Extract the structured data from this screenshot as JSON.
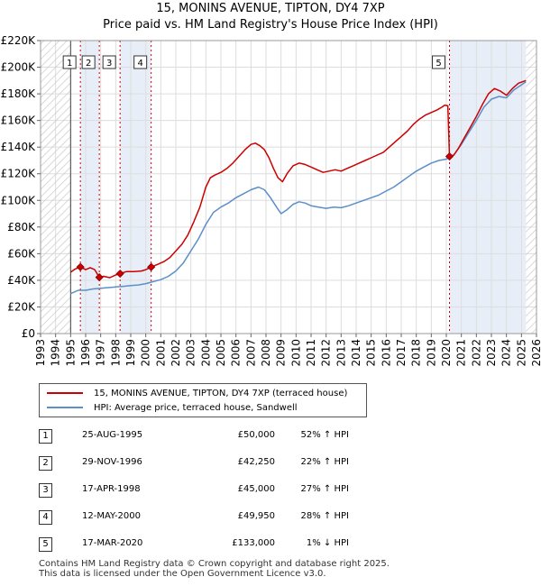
{
  "title_line1": "15, MONINS AVENUE, TIPTON, DY4 7XP",
  "title_line2": "Price paid vs. HM Land Registry's House Price Index (HPI)",
  "chart_data": {
    "type": "line",
    "x_label": "",
    "y_label": "",
    "xlim": [
      1993,
      2026
    ],
    "ylim": [
      0,
      220000
    ],
    "y_ticks": [
      {
        "value": 0,
        "label": "£0"
      },
      {
        "value": 20000,
        "label": "£20K"
      },
      {
        "value": 40000,
        "label": "£40K"
      },
      {
        "value": 60000,
        "label": "£60K"
      },
      {
        "value": 80000,
        "label": "£80K"
      },
      {
        "value": 100000,
        "label": "£100K"
      },
      {
        "value": 120000,
        "label": "£120K"
      },
      {
        "value": 140000,
        "label": "£140K"
      },
      {
        "value": 160000,
        "label": "£160K"
      },
      {
        "value": 180000,
        "label": "£180K"
      },
      {
        "value": 200000,
        "label": "£200K"
      },
      {
        "value": 220000,
        "label": "£220K"
      }
    ],
    "x_ticks": [
      "1993",
      "1994",
      "1995",
      "1996",
      "1997",
      "1998",
      "1999",
      "2000",
      "2001",
      "2002",
      "2003",
      "2004",
      "2005",
      "2006",
      "2007",
      "2008",
      "2009",
      "2010",
      "2011",
      "2012",
      "2013",
      "2014",
      "2015",
      "2016",
      "2017",
      "2018",
      "2019",
      "2020",
      "2021",
      "2022",
      "2023",
      "2024",
      "2025",
      "2026"
    ],
    "hatch_regions": [
      [
        1993,
        1995.0
      ],
      [
        2025.3,
        2026
      ]
    ],
    "shaded_bands": [
      [
        1995.65,
        1996.91
      ],
      [
        1998.29,
        2000.36
      ],
      [
        2020.21,
        2025.3
      ]
    ],
    "series": [
      {
        "name": "15, MONINS AVENUE, TIPTON, DY4 7XP (terraced house)",
        "color": "#cc0000",
        "points": [
          [
            1995.0,
            46000
          ],
          [
            1995.3,
            48500
          ],
          [
            1995.65,
            50000
          ],
          [
            1996.0,
            48000
          ],
          [
            1996.3,
            49500
          ],
          [
            1996.6,
            48000
          ],
          [
            1996.91,
            42250
          ],
          [
            1997.2,
            43000
          ],
          [
            1997.6,
            42000
          ],
          [
            1998.0,
            44000
          ],
          [
            1998.29,
            45000
          ],
          [
            1998.7,
            46500
          ],
          [
            1999.2,
            46500
          ],
          [
            1999.7,
            47000
          ],
          [
            2000.0,
            48000
          ],
          [
            2000.36,
            49950
          ],
          [
            2000.8,
            52000
          ],
          [
            2001.2,
            54000
          ],
          [
            2001.6,
            57000
          ],
          [
            2002.0,
            62000
          ],
          [
            2002.4,
            67000
          ],
          [
            2002.8,
            74000
          ],
          [
            2003.2,
            84000
          ],
          [
            2003.6,
            95000
          ],
          [
            2004.0,
            110000
          ],
          [
            2004.3,
            117000
          ],
          [
            2004.6,
            119000
          ],
          [
            2005.0,
            121000
          ],
          [
            2005.4,
            124000
          ],
          [
            2005.8,
            128000
          ],
          [
            2006.2,
            133000
          ],
          [
            2006.6,
            138000
          ],
          [
            2007.0,
            142000
          ],
          [
            2007.3,
            143000
          ],
          [
            2007.6,
            141000
          ],
          [
            2007.9,
            138000
          ],
          [
            2008.2,
            132000
          ],
          [
            2008.5,
            124000
          ],
          [
            2008.8,
            117000
          ],
          [
            2009.1,
            114000
          ],
          [
            2009.4,
            120000
          ],
          [
            2009.8,
            126000
          ],
          [
            2010.2,
            128000
          ],
          [
            2010.6,
            127000
          ],
          [
            2011.0,
            125000
          ],
          [
            2011.4,
            123000
          ],
          [
            2011.8,
            121000
          ],
          [
            2012.2,
            122000
          ],
          [
            2012.6,
            123000
          ],
          [
            2013.0,
            122000
          ],
          [
            2013.4,
            124000
          ],
          [
            2013.8,
            126000
          ],
          [
            2014.2,
            128000
          ],
          [
            2014.6,
            130000
          ],
          [
            2015.0,
            132000
          ],
          [
            2015.4,
            134000
          ],
          [
            2015.8,
            136000
          ],
          [
            2016.2,
            140000
          ],
          [
            2016.6,
            144000
          ],
          [
            2017.0,
            148000
          ],
          [
            2017.4,
            152000
          ],
          [
            2017.8,
            157000
          ],
          [
            2018.2,
            161000
          ],
          [
            2018.6,
            164000
          ],
          [
            2019.0,
            166000
          ],
          [
            2019.4,
            168000
          ],
          [
            2019.7,
            170000
          ],
          [
            2019.9,
            171500
          ],
          [
            2020.1,
            171000
          ],
          [
            2020.21,
            133000
          ],
          [
            2020.5,
            134000
          ],
          [
            2020.8,
            139000
          ],
          [
            2021.2,
            147000
          ],
          [
            2021.6,
            155000
          ],
          [
            2022.0,
            163000
          ],
          [
            2022.4,
            172000
          ],
          [
            2022.8,
            180000
          ],
          [
            2023.2,
            184000
          ],
          [
            2023.6,
            182000
          ],
          [
            2024.0,
            179000
          ],
          [
            2024.4,
            184000
          ],
          [
            2024.8,
            188000
          ],
          [
            2025.3,
            190000
          ]
        ]
      },
      {
        "name": "HPI: Average price, terraced house, Sandwell",
        "color": "#5b8fc9",
        "points": [
          [
            1995.0,
            30000
          ],
          [
            1995.5,
            32500
          ],
          [
            1996.0,
            32500
          ],
          [
            1996.5,
            33500
          ],
          [
            1997.0,
            34000
          ],
          [
            1997.5,
            34500
          ],
          [
            1998.0,
            35000
          ],
          [
            1998.5,
            35500
          ],
          [
            1999.0,
            36000
          ],
          [
            1999.5,
            36500
          ],
          [
            2000.0,
            37500
          ],
          [
            2000.5,
            39000
          ],
          [
            2001.0,
            40500
          ],
          [
            2001.5,
            43000
          ],
          [
            2002.0,
            47000
          ],
          [
            2002.5,
            53000
          ],
          [
            2003.0,
            62000
          ],
          [
            2003.5,
            71000
          ],
          [
            2004.0,
            82000
          ],
          [
            2004.5,
            91000
          ],
          [
            2005.0,
            95000
          ],
          [
            2005.5,
            98000
          ],
          [
            2006.0,
            102000
          ],
          [
            2006.5,
            105000
          ],
          [
            2007.0,
            108000
          ],
          [
            2007.5,
            110000
          ],
          [
            2007.9,
            108000
          ],
          [
            2008.3,
            102000
          ],
          [
            2008.7,
            95000
          ],
          [
            2009.0,
            90000
          ],
          [
            2009.4,
            93000
          ],
          [
            2009.8,
            97000
          ],
          [
            2010.2,
            99000
          ],
          [
            2010.6,
            98000
          ],
          [
            2011.0,
            96000
          ],
          [
            2011.5,
            95000
          ],
          [
            2012.0,
            94000
          ],
          [
            2012.5,
            95000
          ],
          [
            2013.0,
            94500
          ],
          [
            2013.5,
            96000
          ],
          [
            2014.0,
            98000
          ],
          [
            2014.5,
            100000
          ],
          [
            2015.0,
            102000
          ],
          [
            2015.5,
            104000
          ],
          [
            2016.0,
            107000
          ],
          [
            2016.5,
            110000
          ],
          [
            2017.0,
            114000
          ],
          [
            2017.5,
            118000
          ],
          [
            2018.0,
            122000
          ],
          [
            2018.5,
            125000
          ],
          [
            2019.0,
            128000
          ],
          [
            2019.5,
            130000
          ],
          [
            2020.0,
            131000
          ],
          [
            2020.5,
            134000
          ],
          [
            2021.0,
            142000
          ],
          [
            2021.5,
            151000
          ],
          [
            2022.0,
            160000
          ],
          [
            2022.5,
            170000
          ],
          [
            2023.0,
            176000
          ],
          [
            2023.5,
            178000
          ],
          [
            2024.0,
            177000
          ],
          [
            2024.5,
            183000
          ],
          [
            2025.3,
            189000
          ]
        ]
      }
    ],
    "sales": [
      {
        "label": "1",
        "x": 1995.65,
        "price": 50000
      },
      {
        "label": "2",
        "x": 1996.91,
        "price": 42250
      },
      {
        "label": "3",
        "x": 1998.29,
        "price": 45000
      },
      {
        "label": "4",
        "x": 2000.36,
        "price": 49950
      },
      {
        "label": "5",
        "x": 2020.21,
        "price": 133000
      }
    ]
  },
  "legend": {
    "items": [
      {
        "label": "15, MONINS AVENUE, TIPTON, DY4 7XP (terraced house)",
        "color": "#cc0000"
      },
      {
        "label": "HPI: Average price, terraced house, Sandwell",
        "color": "#5b8fc9"
      }
    ]
  },
  "table": {
    "rows": [
      {
        "num": "1",
        "date": "25-AUG-1995",
        "price": "£50,000",
        "hpi": "52% ↑ HPI"
      },
      {
        "num": "2",
        "date": "29-NOV-1996",
        "price": "£42,250",
        "hpi": "22% ↑ HPI"
      },
      {
        "num": "3",
        "date": "17-APR-1998",
        "price": "£45,000",
        "hpi": "27% ↑ HPI"
      },
      {
        "num": "4",
        "date": "12-MAY-2000",
        "price": "£49,950",
        "hpi": "28% ↑ HPI"
      },
      {
        "num": "5",
        "date": "17-MAR-2020",
        "price": "£133,000",
        "hpi": "1% ↓ HPI"
      }
    ]
  },
  "footer": {
    "line1": "Contains HM Land Registry data © Crown copyright and database right 2025.",
    "line2": "This data is licensed under the Open Government Licence v3.0."
  }
}
